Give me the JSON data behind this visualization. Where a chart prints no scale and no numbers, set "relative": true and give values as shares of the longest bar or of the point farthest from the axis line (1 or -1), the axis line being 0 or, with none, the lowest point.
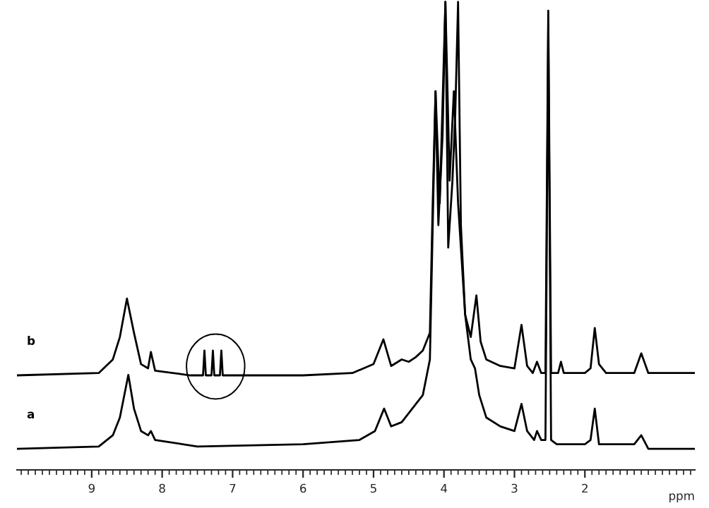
{
  "chart_data": {
    "type": "line",
    "relative": true,
    "xlabel": "ppm",
    "xlim": [
      10.06,
      0.44
    ],
    "xticks": [
      {
        "value": 10.0,
        "label": null
      },
      {
        "value": 9.9,
        "label": null
      },
      {
        "value": 9.8,
        "label": null
      },
      {
        "value": 9.7,
        "label": null
      },
      {
        "value": 9.6,
        "label": null
      },
      {
        "value": 9.5,
        "label": null
      },
      {
        "value": 9.4,
        "label": null
      },
      {
        "value": 9.3,
        "label": null
      },
      {
        "value": 9.2,
        "label": null
      },
      {
        "value": 9.1,
        "label": null
      },
      9,
      {
        "value": 8.9,
        "label": null
      },
      {
        "value": 8.8,
        "label": null
      },
      {
        "value": 8.7,
        "label": null
      },
      {
        "value": 8.6,
        "label": null
      },
      {
        "value": 8.5,
        "label": null
      },
      {
        "value": 8.4,
        "label": null
      },
      {
        "value": 8.3,
        "label": null
      },
      {
        "value": 8.2,
        "label": null
      },
      {
        "value": 8.1,
        "label": null
      },
      8,
      {
        "value": 7.9,
        "label": null
      },
      {
        "value": 7.8,
        "label": null
      },
      {
        "value": 7.7,
        "label": null
      },
      {
        "value": 7.6,
        "label": null
      },
      {
        "value": 7.5,
        "label": null
      },
      {
        "value": 7.4,
        "label": null
      },
      {
        "value": 7.3,
        "label": null
      },
      {
        "value": 7.2,
        "label": null
      },
      {
        "value": 7.1,
        "label": null
      },
      7,
      {
        "value": 6.9,
        "label": null
      },
      {
        "value": 6.8,
        "label": null
      },
      {
        "value": 6.7,
        "label": null
      },
      {
        "value": 6.6,
        "label": null
      },
      {
        "value": 6.5,
        "label": null
      },
      {
        "value": 6.4,
        "label": null
      },
      {
        "value": 6.3,
        "label": null
      },
      {
        "value": 6.2,
        "label": null
      },
      {
        "value": 6.1,
        "label": null
      },
      6,
      {
        "value": 5.9,
        "label": null
      },
      {
        "value": 5.8,
        "label": null
      },
      {
        "value": 5.7,
        "label": null
      },
      {
        "value": 5.6,
        "label": null
      },
      {
        "value": 5.5,
        "label": null
      },
      {
        "value": 5.4,
        "label": null
      },
      {
        "value": 5.3,
        "label": null
      },
      {
        "value": 5.2,
        "label": null
      },
      {
        "value": 5.1,
        "label": null
      },
      5,
      {
        "value": 4.9,
        "label": null
      },
      {
        "value": 4.8,
        "label": null
      },
      {
        "value": 4.7,
        "label": null
      },
      {
        "value": 4.6,
        "label": null
      },
      {
        "value": 4.5,
        "label": null
      },
      {
        "value": 4.4,
        "label": null
      },
      {
        "value": 4.3,
        "label": null
      },
      {
        "value": 4.2,
        "label": null
      },
      {
        "value": 4.1,
        "label": null
      },
      4,
      {
        "value": 3.9,
        "label": null
      },
      {
        "value": 3.8,
        "label": null
      },
      {
        "value": 3.7,
        "label": null
      },
      {
        "value": 3.6,
        "label": null
      },
      {
        "value": 3.5,
        "label": null
      },
      {
        "value": 3.4,
        "label": null
      },
      {
        "value": 3.3,
        "label": null
      },
      {
        "value": 3.2,
        "label": null
      },
      {
        "value": 3.1,
        "label": null
      },
      3,
      {
        "value": 2.9,
        "label": null
      },
      {
        "value": 2.8,
        "label": null
      },
      {
        "value": 2.7,
        "label": null
      },
      {
        "value": 2.6,
        "label": null
      },
      {
        "value": 2.5,
        "label": null
      },
      {
        "value": 2.4,
        "label": null
      },
      {
        "value": 2.3,
        "label": null
      },
      {
        "value": 2.2,
        "label": null
      },
      {
        "value": 2.1,
        "label": null
      },
      2,
      {
        "value": 1.9,
        "label": null
      },
      {
        "value": 1.8,
        "label": null
      },
      {
        "value": 1.7,
        "label": null
      },
      {
        "value": 1.6,
        "label": null
      },
      {
        "value": 1.5,
        "label": null
      },
      {
        "value": 1.4,
        "label": null
      },
      {
        "value": 1.3,
        "label": null
      },
      {
        "value": 1.2,
        "label": null
      },
      {
        "value": 1.1,
        "label": null
      },
      {
        "value": 1.0,
        "label": null
      },
      {
        "value": 0.9,
        "label": null
      },
      {
        "value": 0.8,
        "label": null
      },
      {
        "value": 0.7,
        "label": null
      },
      {
        "value": 0.6,
        "label": null
      },
      {
        "value": 0.5,
        "label": null
      }
    ],
    "marker": "none",
    "line_style": "solid",
    "series": [
      {
        "name": "b",
        "color": "#000000",
        "x": [
          10.06,
          8.9,
          8.7,
          8.6,
          8.5,
          8.4,
          8.3,
          8.2,
          8.16,
          8.1,
          7.6,
          7.42,
          7.4,
          7.38,
          7.3,
          7.28,
          7.26,
          7.18,
          7.16,
          7.14,
          6.0,
          5.3,
          5.0,
          4.86,
          4.75,
          4.6,
          4.5,
          4.4,
          4.3,
          4.2,
          4.16,
          4.12,
          4.08,
          4.02,
          3.98,
          3.94,
          3.88,
          3.84,
          3.8,
          3.76,
          3.7,
          3.62,
          3.54,
          3.48,
          3.4,
          3.2,
          3.0,
          2.9,
          2.82,
          2.74,
          2.68,
          2.62,
          2.56,
          2.52,
          2.48,
          2.38,
          2.34,
          2.3,
          2.0,
          1.92,
          1.86,
          1.8,
          1.7,
          1.3,
          1.2,
          1.1,
          0.44
        ],
        "values": [
          0.202,
          0.207,
          0.236,
          0.284,
          0.366,
          0.293,
          0.226,
          0.217,
          0.252,
          0.212,
          0.202,
          0.202,
          0.255,
          0.202,
          0.202,
          0.255,
          0.202,
          0.202,
          0.255,
          0.202,
          0.202,
          0.207,
          0.226,
          0.279,
          0.222,
          0.236,
          0.231,
          0.241,
          0.255,
          0.293,
          0.57,
          0.809,
          0.523,
          0.714,
          1.0,
          0.475,
          0.618,
          0.761,
          1.0,
          0.523,
          0.332,
          0.284,
          0.373,
          0.274,
          0.236,
          0.222,
          0.217,
          0.31,
          0.222,
          0.207,
          0.231,
          0.207,
          0.207,
          0.981,
          0.207,
          0.207,
          0.231,
          0.207,
          0.207,
          0.217,
          0.303,
          0.226,
          0.207,
          0.207,
          0.249,
          0.207,
          0.207
        ]
      },
      {
        "name": "a",
        "color": "#000000",
        "x": [
          10.06,
          8.9,
          8.7,
          8.6,
          8.48,
          8.4,
          8.3,
          8.2,
          8.16,
          8.1,
          7.5,
          6.0,
          5.2,
          4.98,
          4.85,
          4.75,
          4.6,
          4.45,
          4.3,
          4.2,
          4.12,
          4.06,
          3.98,
          3.92,
          3.86,
          3.8,
          3.7,
          3.62,
          3.56,
          3.5,
          3.4,
          3.2,
          3.0,
          2.9,
          2.82,
          2.72,
          2.68,
          2.62,
          2.56,
          2.52,
          2.48,
          2.4,
          2.0,
          1.92,
          1.86,
          1.8,
          1.3,
          1.2,
          1.1,
          0.44
        ],
        "values": [
          0.045,
          0.05,
          0.074,
          0.112,
          0.203,
          0.131,
          0.083,
          0.074,
          0.083,
          0.064,
          0.05,
          0.055,
          0.064,
          0.083,
          0.131,
          0.093,
          0.102,
          0.131,
          0.16,
          0.236,
          0.809,
          0.57,
          1.0,
          0.618,
          0.809,
          0.57,
          0.332,
          0.236,
          0.217,
          0.16,
          0.112,
          0.093,
          0.083,
          0.141,
          0.083,
          0.064,
          0.083,
          0.064,
          0.064,
          0.952,
          0.064,
          0.055,
          0.055,
          0.064,
          0.131,
          0.055,
          0.055,
          0.074,
          0.045,
          0.045
        ]
      }
    ]
  }
}
